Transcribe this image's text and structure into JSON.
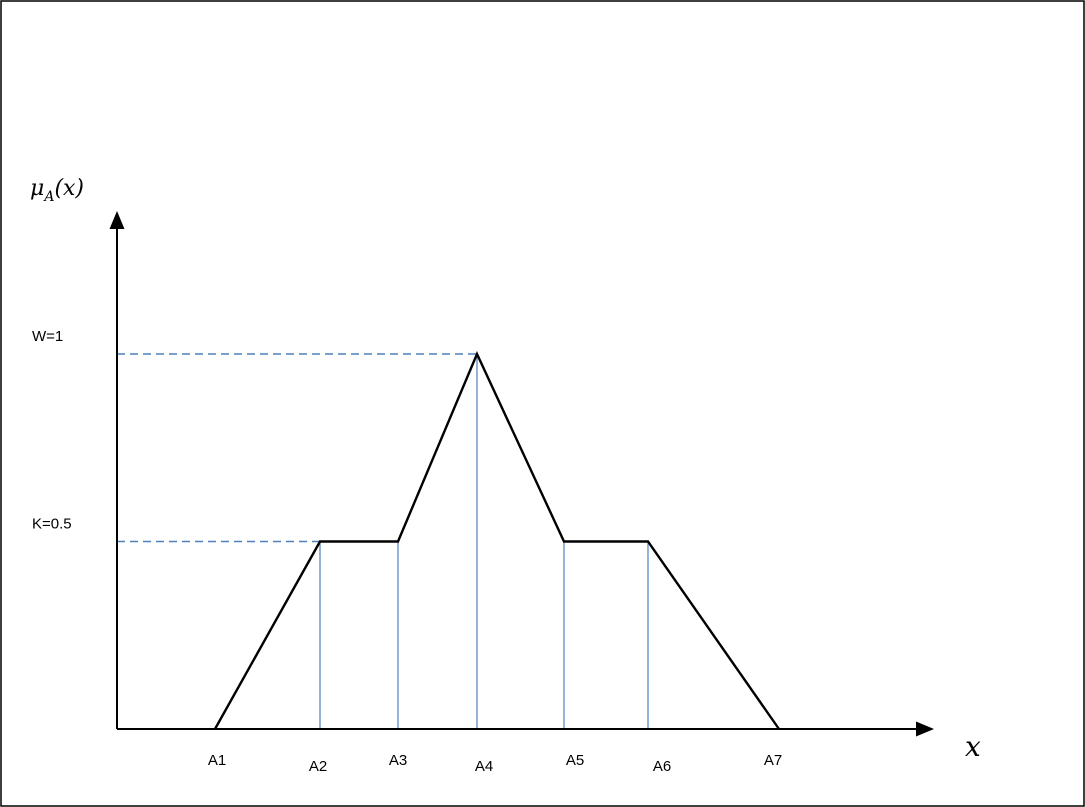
{
  "diagram": {
    "y_axis_label": {
      "main": "μ",
      "subscript": "A",
      "argument": "(x)"
    },
    "x_axis_label": "x",
    "levels": [
      {
        "label": "W=1",
        "value": 1
      },
      {
        "label": "K=0.5",
        "value": 0.5
      }
    ],
    "points": [
      {
        "label": "A1",
        "membership": 0
      },
      {
        "label": "A2",
        "membership": 0.5
      },
      {
        "label": "A3",
        "membership": 0.5
      },
      {
        "label": "A4",
        "membership": 1
      },
      {
        "label": "A5",
        "membership": 0.5
      },
      {
        "label": "A6",
        "membership": 0.5
      },
      {
        "label": "A7",
        "membership": 0
      }
    ],
    "colors": {
      "curve": "#000000",
      "guides": "#4f81bd"
    }
  }
}
